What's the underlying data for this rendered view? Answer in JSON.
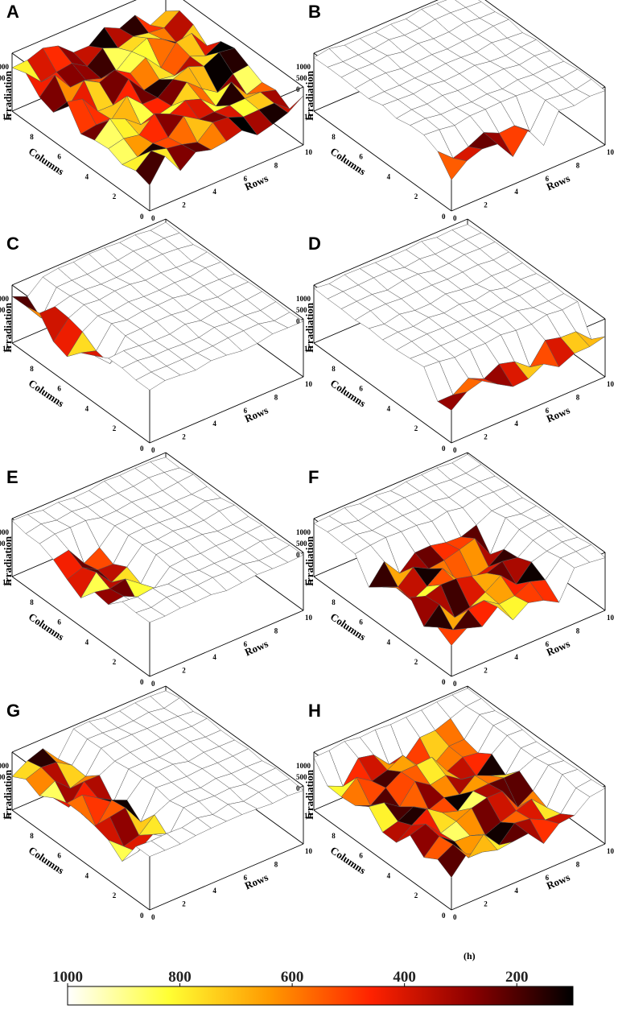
{
  "chart_data": {
    "type": "surface3d",
    "z_label": "Irradiation",
    "x_label": "Rows",
    "y_label": "Columns",
    "x_ticks": [
      "0",
      "2",
      "4",
      "6",
      "8",
      "10"
    ],
    "y_ticks": [
      "0",
      "2",
      "4",
      "6",
      "8",
      "10"
    ],
    "z_ticks": [
      "1000",
      "500",
      "0"
    ],
    "zlim": [
      0,
      1000
    ],
    "caption": "(h)",
    "colorbar": {
      "ticks": [
        "1000",
        "800",
        "600",
        "400",
        "200"
      ],
      "range": [
        1000,
        100
      ],
      "colormap": "hot-reversed",
      "colors": [
        "#ffffff",
        "#ffff33",
        "#ff9900",
        "#ff2200",
        "#8b0000",
        "#000000"
      ]
    },
    "panels": [
      {
        "label": "A",
        "shaded_region": {
          "rows": [
            0,
            10
          ],
          "columns": [
            0,
            10
          ]
        }
      },
      {
        "label": "B",
        "shaded_region": {
          "rows": [
            0,
            6
          ],
          "columns": [
            0,
            1
          ]
        }
      },
      {
        "label": "C",
        "shaded_region": {
          "rows": [
            0,
            1
          ],
          "columns": [
            4,
            10
          ]
        }
      },
      {
        "label": "D",
        "shaded_region": {
          "rows": [
            0,
            10
          ],
          "columns": [
            0,
            1
          ]
        }
      },
      {
        "label": "E",
        "shaded_region": {
          "rows": [
            0,
            3
          ],
          "columns": [
            3,
            7
          ]
        }
      },
      {
        "label": "F",
        "shaded_region": {
          "rows": [
            0,
            7
          ],
          "columns": [
            0,
            6
          ]
        }
      },
      {
        "label": "G",
        "shaded_region": {
          "rows": [
            0,
            3
          ],
          "columns": [
            2,
            10
          ]
        }
      },
      {
        "label": "H",
        "shaded_region": {
          "rows": [
            0,
            8
          ],
          "columns": [
            0,
            9
          ]
        }
      }
    ]
  }
}
